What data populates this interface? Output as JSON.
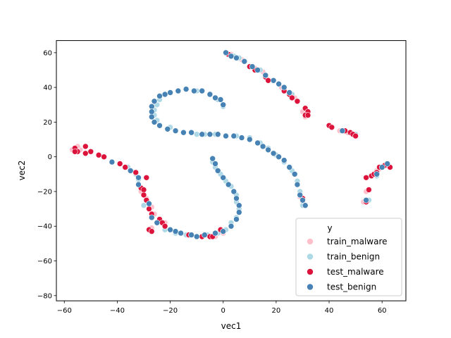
{
  "chart_data": {
    "type": "scatter",
    "xlabel": "vec1",
    "ylabel": "vec2",
    "xlim": [
      -63,
      69
    ],
    "ylim": [
      -83,
      67
    ],
    "xticks": [
      -60,
      -40,
      -20,
      0,
      20,
      40,
      60
    ],
    "yticks": [
      -80,
      -60,
      -40,
      -20,
      0,
      20,
      40,
      60
    ],
    "grid": false,
    "legend": {
      "title": "y",
      "placement": "lower-right",
      "entries": [
        {
          "label": "train_malware",
          "color": "#ffc0cb"
        },
        {
          "label": "train_benign",
          "color": "#add8e6"
        },
        {
          "label": "test_malware",
          "color": "#dc143c"
        },
        {
          "label": "test_benign",
          "color": "#4682b4"
        }
      ]
    },
    "series": [
      {
        "name": "train_malware",
        "color": "#ffc0cb",
        "points": [
          [
            -57,
            4
          ],
          [
            -56,
            5
          ],
          [
            -55,
            3
          ],
          [
            -54,
            4
          ],
          [
            -55,
            6
          ],
          [
            -56,
            3
          ],
          [
            -36,
            -6
          ],
          [
            -31,
            -20
          ],
          [
            -29,
            -24
          ],
          [
            -27,
            -29
          ],
          [
            -26,
            -33
          ],
          [
            -24,
            -36
          ],
          [
            -22,
            -38
          ],
          [
            -27,
            -41
          ],
          [
            1,
            60
          ],
          [
            3,
            59
          ],
          [
            7,
            56
          ],
          [
            12,
            51
          ],
          [
            15,
            49
          ],
          [
            22,
            40
          ],
          [
            27,
            34
          ],
          [
            30,
            26
          ],
          [
            31,
            23
          ],
          [
            44,
            15
          ],
          [
            47,
            14
          ],
          [
            49,
            13
          ],
          [
            29,
            -23
          ],
          [
            30,
            -26
          ],
          [
            58,
            -8
          ],
          [
            59,
            -7
          ],
          [
            60,
            -6
          ],
          [
            54,
            -20
          ],
          [
            53,
            -26
          ],
          [
            -5,
            -46
          ],
          [
            -3,
            -46
          ],
          [
            0,
            -44
          ]
        ]
      },
      {
        "name": "train_benign",
        "color": "#add8e6",
        "points": [
          [
            -24,
            33
          ],
          [
            -25,
            30
          ],
          [
            -26,
            27
          ],
          [
            -26,
            24
          ],
          [
            -25,
            21
          ],
          [
            -20,
            17
          ],
          [
            -17,
            38
          ],
          [
            -14,
            39
          ],
          [
            -10,
            38
          ],
          [
            -5,
            36
          ],
          [
            -2,
            33
          ],
          [
            0,
            29
          ],
          [
            -10,
            13
          ],
          [
            -7,
            13
          ],
          [
            -3,
            13
          ],
          [
            1,
            12
          ],
          [
            5,
            12
          ],
          [
            10,
            11
          ],
          [
            14,
            8
          ],
          [
            17,
            5
          ],
          [
            20,
            1
          ],
          [
            23,
            -3
          ],
          [
            26,
            -8
          ],
          [
            28,
            -14
          ],
          [
            29,
            -20
          ],
          [
            30,
            -28
          ],
          [
            -4,
            -3
          ],
          [
            -3,
            -6
          ],
          [
            -1,
            -10
          ],
          [
            1,
            -14
          ],
          [
            3,
            -17
          ],
          [
            5,
            -22
          ],
          [
            5,
            -26
          ],
          [
            6,
            -30
          ],
          [
            5,
            -35
          ],
          [
            3,
            -38
          ],
          [
            1,
            -42
          ],
          [
            -2,
            -44
          ],
          [
            -6,
            -45
          ],
          [
            -10,
            -46
          ],
          [
            -14,
            -45
          ],
          [
            -18,
            -44
          ],
          [
            -22,
            -42
          ],
          [
            -36,
            -6
          ],
          [
            -33,
            -10
          ],
          [
            -32,
            -13
          ],
          [
            -30,
            -28
          ],
          [
            4,
            58
          ],
          [
            6,
            57
          ],
          [
            11,
            52
          ],
          [
            14,
            50
          ],
          [
            23,
            39
          ],
          [
            26,
            36
          ],
          [
            50,
            13
          ],
          [
            40,
            18
          ],
          [
            55,
            -25
          ],
          [
            58,
            -11
          ]
        ]
      },
      {
        "name": "test_malware",
        "color": "#dc143c",
        "points": [
          [
            -56,
            5
          ],
          [
            -55,
            3
          ],
          [
            -56,
            3
          ],
          [
            -52,
            6
          ],
          [
            -52,
            2
          ],
          [
            -50,
            3
          ],
          [
            -47,
            1
          ],
          [
            -45,
            0
          ],
          [
            -39,
            -4
          ],
          [
            -37,
            -6
          ],
          [
            -35,
            -8
          ],
          [
            -33,
            -9
          ],
          [
            -29,
            -12
          ],
          [
            -31,
            -18
          ],
          [
            -30,
            -19
          ],
          [
            -30,
            -22
          ],
          [
            -29,
            -25
          ],
          [
            -28,
            -30
          ],
          [
            -27,
            -33
          ],
          [
            -24,
            -36
          ],
          [
            -23,
            -38
          ],
          [
            -22,
            -40
          ],
          [
            -28,
            -42
          ],
          [
            -27,
            -43
          ],
          [
            -13,
            -45
          ],
          [
            -8,
            -46
          ],
          [
            -5,
            -46
          ],
          [
            -4,
            -46
          ],
          [
            -1,
            -42
          ],
          [
            2,
            59
          ],
          [
            3,
            58
          ],
          [
            10,
            52
          ],
          [
            12,
            50
          ],
          [
            16,
            46
          ],
          [
            17,
            44
          ],
          [
            23,
            38
          ],
          [
            25,
            36
          ],
          [
            26,
            34
          ],
          [
            28,
            32
          ],
          [
            31,
            28
          ],
          [
            32,
            26
          ],
          [
            31,
            24
          ],
          [
            32,
            24
          ],
          [
            40,
            18
          ],
          [
            41,
            17
          ],
          [
            46,
            15
          ],
          [
            48,
            14
          ],
          [
            49,
            13
          ],
          [
            50,
            12
          ],
          [
            29,
            -22
          ],
          [
            30,
            -24
          ],
          [
            54,
            -12
          ],
          [
            56,
            -11
          ],
          [
            57,
            -10
          ],
          [
            58,
            -9
          ],
          [
            59,
            -6
          ],
          [
            61,
            -5
          ],
          [
            63,
            -6
          ],
          [
            55,
            -19
          ],
          [
            54,
            -26
          ]
        ]
      },
      {
        "name": "test_benign",
        "color": "#4682b4",
        "points": [
          [
            -42,
            -3
          ],
          [
            -35,
            -8
          ],
          [
            -32,
            -12
          ],
          [
            -32,
            -16
          ],
          [
            -28,
            -27
          ],
          [
            -27,
            -35
          ],
          [
            -25,
            -38
          ],
          [
            -20,
            -42
          ],
          [
            -18,
            -43
          ],
          [
            -16,
            -44
          ],
          [
            -12,
            -45
          ],
          [
            -10,
            -46
          ],
          [
            -7,
            -45
          ],
          [
            -3,
            -44
          ],
          [
            0,
            -43
          ],
          [
            3,
            -40
          ],
          [
            5,
            -36
          ],
          [
            6,
            -32
          ],
          [
            6,
            -28
          ],
          [
            5,
            -24
          ],
          [
            4,
            -20
          ],
          [
            2,
            -16
          ],
          [
            0,
            -12
          ],
          [
            -2,
            -8
          ],
          [
            -3,
            -4
          ],
          [
            -4,
            -1
          ],
          [
            -27,
            29
          ],
          [
            -27,
            26
          ],
          [
            -27,
            23
          ],
          [
            -26,
            20
          ],
          [
            -24,
            18
          ],
          [
            -21,
            16
          ],
          [
            -18,
            15
          ],
          [
            -15,
            14
          ],
          [
            -12,
            14
          ],
          [
            -8,
            13
          ],
          [
            -5,
            13
          ],
          [
            -2,
            13
          ],
          [
            1,
            12
          ],
          [
            4,
            12
          ],
          [
            7,
            11
          ],
          [
            10,
            10
          ],
          [
            13,
            8
          ],
          [
            15,
            6
          ],
          [
            17,
            4
          ],
          [
            19,
            2
          ],
          [
            21,
            0
          ],
          [
            23,
            -2
          ],
          [
            25,
            -6
          ],
          [
            27,
            -10
          ],
          [
            28,
            -16
          ],
          [
            29,
            -22
          ],
          [
            30,
            -25
          ],
          [
            31,
            -28
          ],
          [
            -26,
            32
          ],
          [
            -24,
            35
          ],
          [
            -22,
            36
          ],
          [
            -20,
            37
          ],
          [
            -17,
            38
          ],
          [
            -14,
            39
          ],
          [
            -11,
            38
          ],
          [
            -8,
            38
          ],
          [
            -5,
            36
          ],
          [
            -3,
            34
          ],
          [
            -1,
            33
          ],
          [
            0,
            30
          ],
          [
            1,
            60
          ],
          [
            3,
            58
          ],
          [
            5,
            57
          ],
          [
            8,
            55
          ],
          [
            11,
            52
          ],
          [
            13,
            50
          ],
          [
            16,
            47
          ],
          [
            19,
            44
          ],
          [
            21,
            42
          ],
          [
            23,
            40
          ],
          [
            25,
            37
          ],
          [
            45,
            15
          ],
          [
            58,
            -10
          ],
          [
            60,
            -6
          ],
          [
            62,
            -4
          ],
          [
            54,
            -25
          ]
        ]
      }
    ]
  }
}
